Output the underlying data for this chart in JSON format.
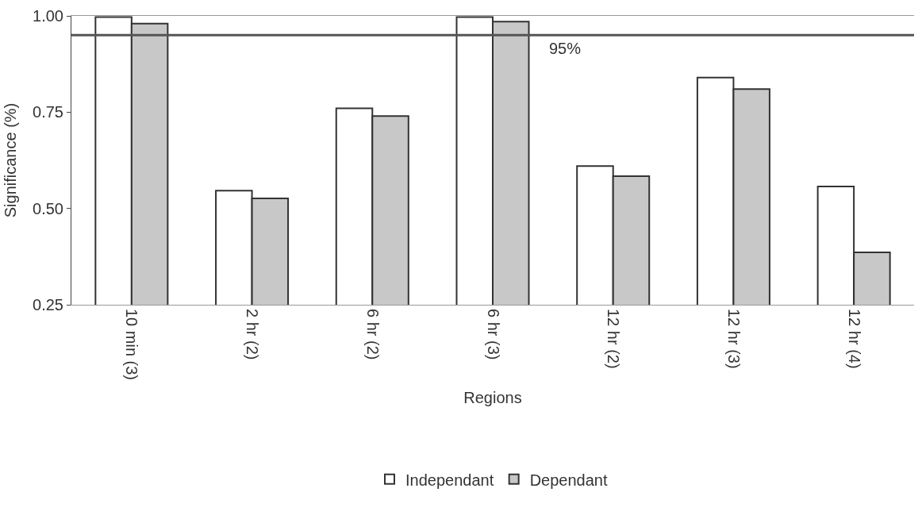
{
  "chart_data": {
    "type": "bar",
    "xlabel": "Regions",
    "ylabel": "Significance (%)",
    "categories": [
      "10 min (3)",
      "2 hr (2)",
      "6 hr (2)",
      "6 hr (3)",
      "12 hr (2)",
      "12 hr (3)",
      "12 hr (4)"
    ],
    "series": [
      {
        "name": "Independant",
        "color": "#ffffff",
        "values": [
          0.997,
          0.546,
          0.76,
          0.997,
          0.61,
          0.84,
          0.557
        ]
      },
      {
        "name": "Dependant",
        "color": "#c8c8c8",
        "values": [
          0.98,
          0.526,
          0.74,
          0.985,
          0.584,
          0.81,
          0.386
        ]
      }
    ],
    "ylim": [
      0.25,
      1.0
    ],
    "yticks": [
      {
        "value": 0.25,
        "label": "0.25"
      },
      {
        "value": 0.5,
        "label": "0.50"
      },
      {
        "value": 0.75,
        "label": "0.75"
      },
      {
        "value": 1.0,
        "label": "1.00"
      }
    ],
    "ref_lines": [
      {
        "axis": "y",
        "value": 0.95,
        "label": "95%",
        "color": "#555555"
      }
    ],
    "legend": "bottom"
  }
}
